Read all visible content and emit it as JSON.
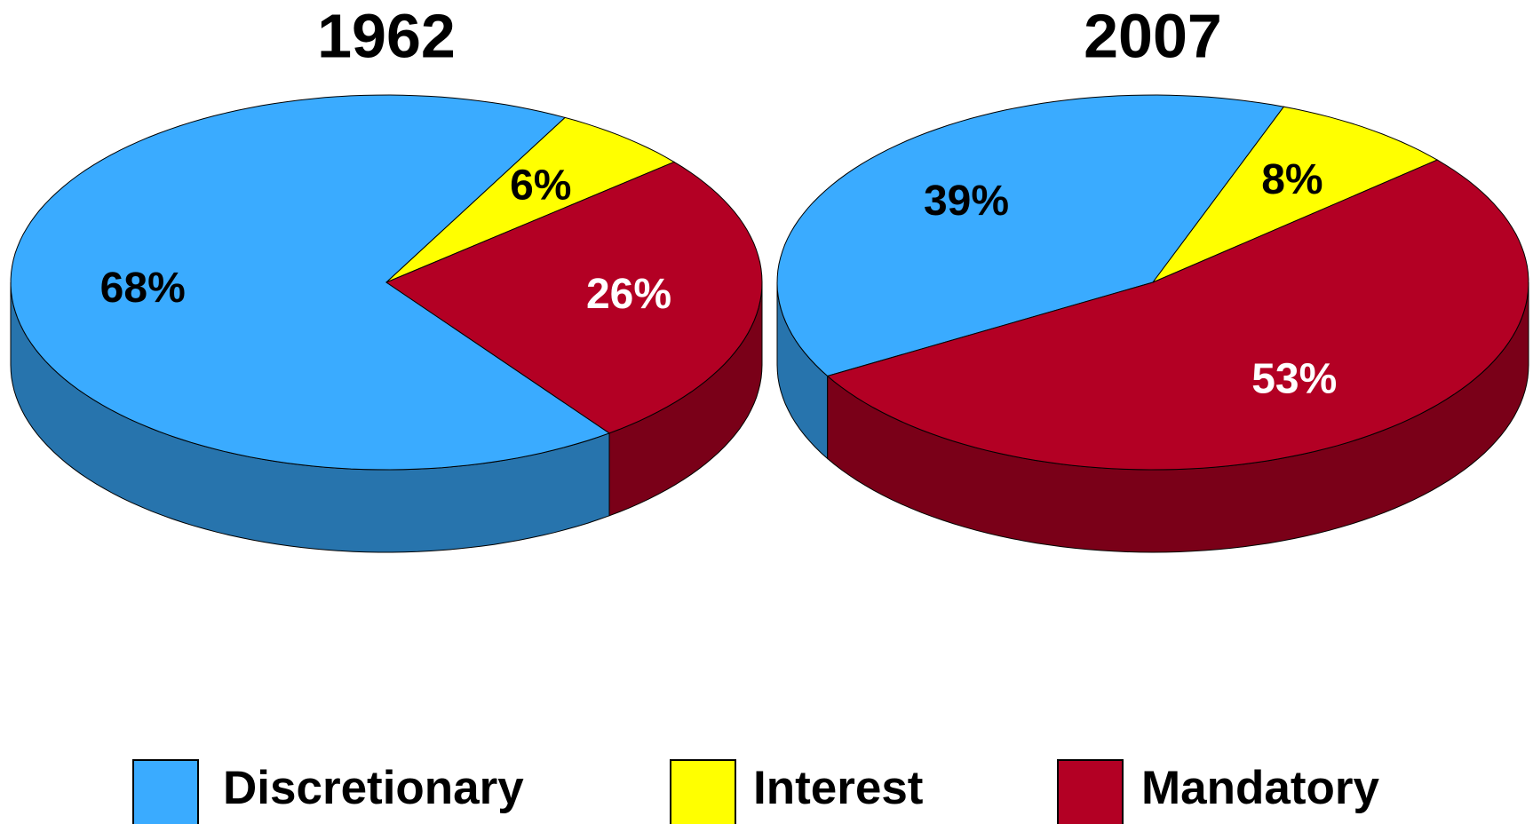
{
  "chart_data": [
    {
      "type": "pie",
      "title": "1962",
      "categories": [
        "Discretionary",
        "Interest",
        "Mandatory"
      ],
      "values": [
        68,
        6,
        26
      ],
      "value_labels": [
        "68%",
        "6%",
        "26%"
      ],
      "colors": [
        "#3aabff",
        "#ffff00",
        "#b30024"
      ]
    },
    {
      "type": "pie",
      "title": "2007",
      "categories": [
        "Discretionary",
        "Interest",
        "Mandatory"
      ],
      "values": [
        39,
        8,
        53
      ],
      "value_labels": [
        "39%",
        "8%",
        "53%"
      ],
      "colors": [
        "#3aabff",
        "#ffff00",
        "#b30024"
      ]
    }
  ]
}
